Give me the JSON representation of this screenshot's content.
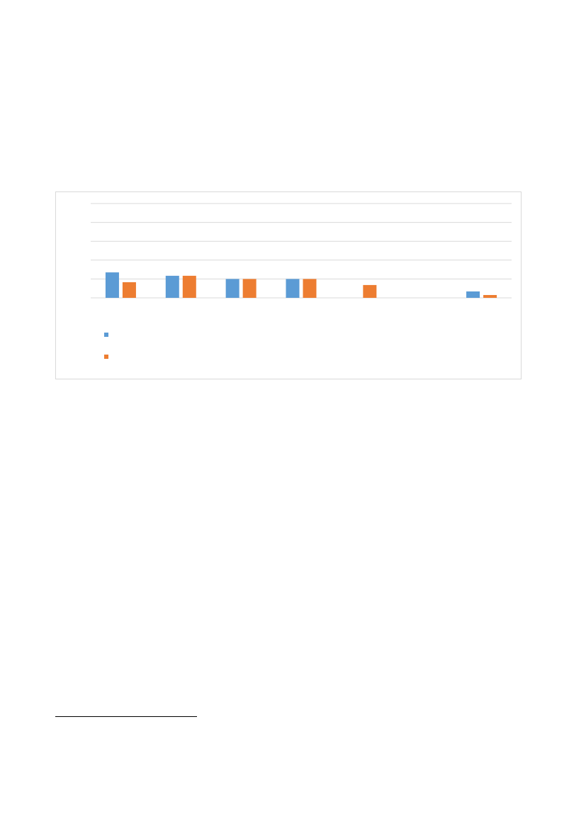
{
  "chart_data": {
    "type": "bar",
    "title": "",
    "xlabel": "",
    "ylabel": "",
    "ylim": [
      0,
      5
    ],
    "grid": true,
    "legend_placement": "bottom-left",
    "category_count": 7,
    "series": [
      {
        "values": [
          1.35,
          1.17,
          1.0,
          1.0,
          0,
          0,
          0.34
        ],
        "color": "#5b9bd5"
      },
      {
        "values": [
          0.83,
          1.17,
          1.0,
          1.0,
          0.68,
          0,
          0.15
        ],
        "color": "#ed7d31"
      }
    ]
  },
  "colors": {
    "gridline": "#d9d9d9",
    "frame": "#d9d9d9"
  }
}
